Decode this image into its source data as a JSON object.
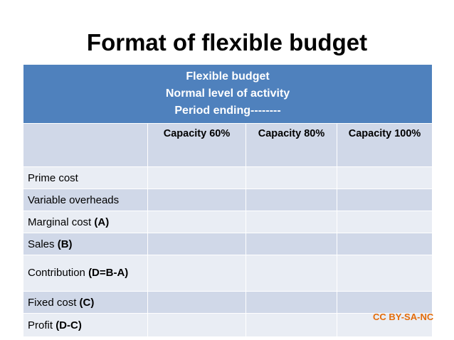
{
  "title": "Format of flexible budget",
  "table": {
    "header_lines": [
      "Flexible budget",
      "Normal level of activity",
      "Period ending--------"
    ],
    "columns": [
      "Capacity 60%",
      "Capacity 80%",
      "Capacity 100%"
    ],
    "rows": [
      {
        "label": "Prime cost",
        "suffix": ""
      },
      {
        "label": "Variable overheads",
        "suffix": ""
      },
      {
        "label": "Marginal cost ",
        "suffix": "(A)"
      },
      {
        "label": "Sales ",
        "suffix": "(B)"
      },
      {
        "label": "Contribution ",
        "suffix": "(D=B-A)"
      },
      {
        "label": "Fixed cost ",
        "suffix": "(C)"
      },
      {
        "label": "Profit ",
        "suffix": "(D-C)"
      }
    ]
  },
  "license": "CC BY-SA-NC",
  "colors": {
    "header_bg": "#4f81bd",
    "row_light": "#e9edf4",
    "row_dark": "#d0d8e8",
    "license_text": "#e46c0a"
  }
}
